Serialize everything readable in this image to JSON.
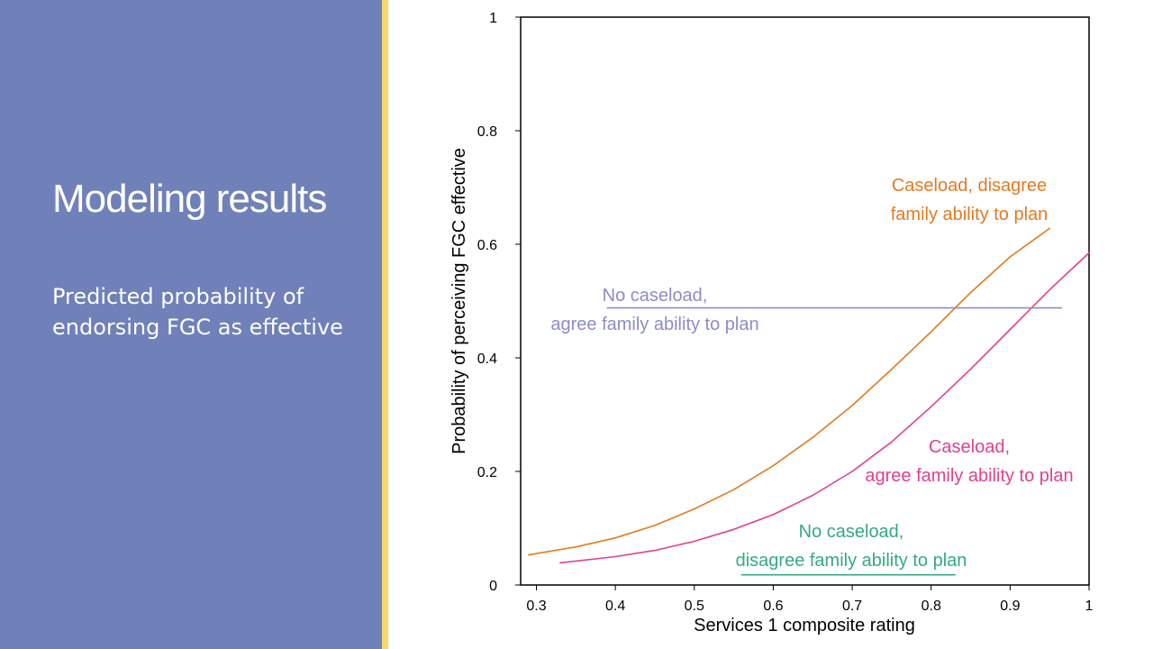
{
  "slide": {
    "title": "Modeling results",
    "subtitle": "Predicted probability of endorsing FGC as effective"
  },
  "colors": {
    "panel": "#7081b9",
    "accent": "#f7d66b",
    "orange": "#e07b22",
    "magenta": "#e0408f",
    "purple": "#8c8cc8",
    "green": "#33aa80"
  },
  "chart_data": {
    "type": "line",
    "title": "",
    "xlabel": "Services 1 composite rating",
    "ylabel": "Probability of perceiving FGC effective",
    "xlim": [
      0.28,
      1.0
    ],
    "ylim": [
      0,
      1
    ],
    "xticks": [
      "0.3",
      "0.4",
      "0.5",
      "0.6",
      "0.7",
      "0.8",
      "0.9",
      "1"
    ],
    "yticks": [
      "0",
      "0.2",
      "0.4",
      "0.6",
      "0.8",
      "1"
    ],
    "grid": false,
    "series": [
      {
        "name": "Caseload, disagree family ability to plan",
        "label_lines": [
          "Caseload, disagree",
          "family ability to plan"
        ],
        "color": "#e07b22",
        "x": [
          0.29,
          0.35,
          0.4,
          0.45,
          0.5,
          0.55,
          0.6,
          0.65,
          0.7,
          0.75,
          0.8,
          0.85,
          0.9,
          0.95
        ],
        "y": [
          0.053,
          0.067,
          0.083,
          0.105,
          0.134,
          0.168,
          0.21,
          0.26,
          0.316,
          0.38,
          0.446,
          0.515,
          0.578,
          0.628
        ]
      },
      {
        "name": "Caseload, agree family ability to plan",
        "label_lines": [
          "Caseload,",
          "agree family ability to plan"
        ],
        "color": "#e0408f",
        "x": [
          0.33,
          0.4,
          0.45,
          0.5,
          0.55,
          0.6,
          0.65,
          0.7,
          0.75,
          0.8,
          0.85,
          0.9,
          0.95,
          1.0
        ],
        "y": [
          0.039,
          0.05,
          0.061,
          0.077,
          0.098,
          0.124,
          0.158,
          0.2,
          0.252,
          0.314,
          0.38,
          0.45,
          0.52,
          0.585
        ]
      },
      {
        "name": "No caseload, agree family ability to plan",
        "label_lines": [
          "No caseload,",
          "agree family ability to plan"
        ],
        "color": "#8c8cc8",
        "x": [
          0.39,
          0.965
        ],
        "y": [
          0.488,
          0.488
        ]
      },
      {
        "name": "No caseload, disagree family ability to plan",
        "label_lines": [
          "No caseload,",
          "disagree family ability to plan"
        ],
        "color": "#33aa80",
        "x": [
          0.56,
          0.83
        ],
        "y": [
          0.018,
          0.018
        ]
      }
    ]
  }
}
